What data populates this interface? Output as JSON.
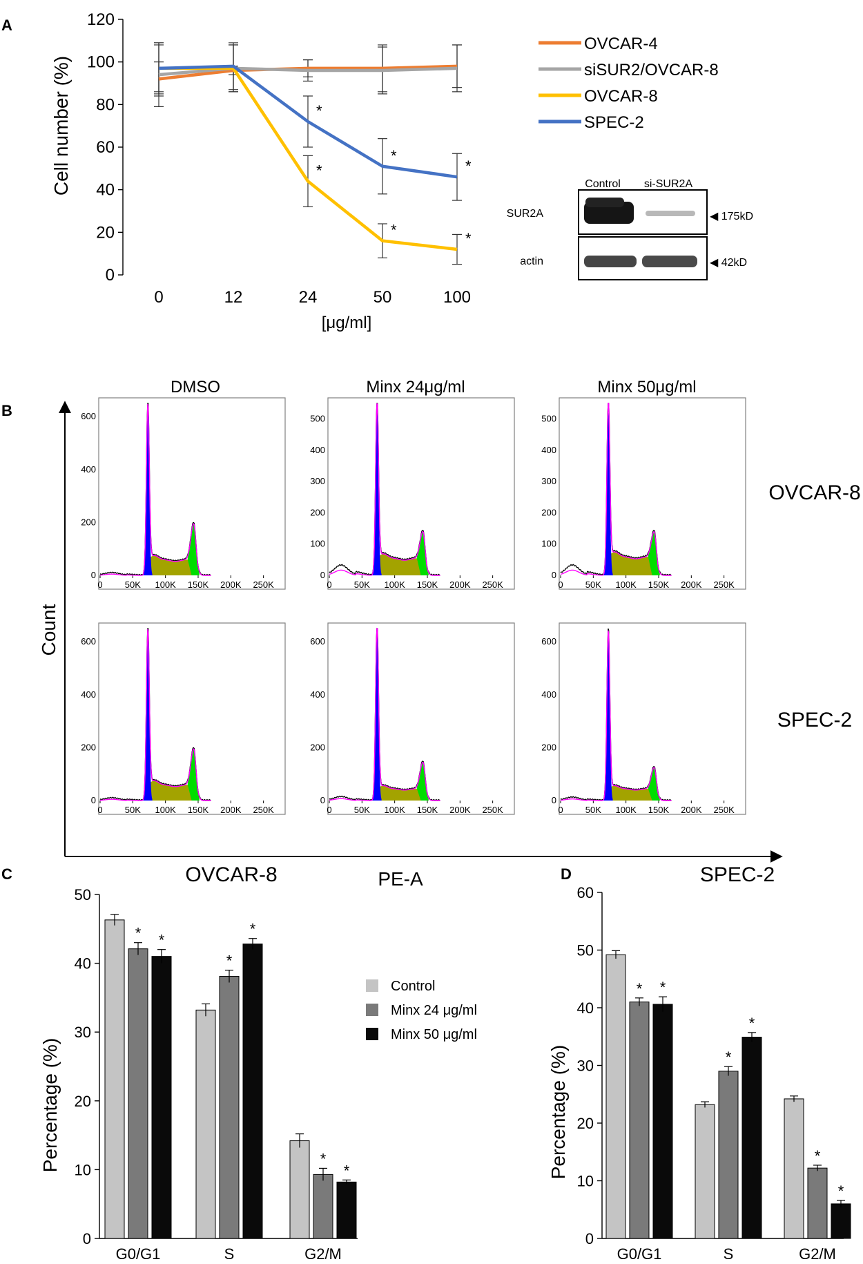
{
  "panels": {
    "A": "A",
    "B": "B",
    "C": "C",
    "D": "D"
  },
  "colors": {
    "OVCAR-4": "#ED7D31",
    "siSUR2/OVCAR-8": "#A5A5A5",
    "OVCAR-8": "#FFC000",
    "SPEC-2": "#4472C4",
    "control": "#C4C4C4",
    "minx24": "#7A7A7A",
    "minx50": "#0A0A0A",
    "g1": "#0000FF",
    "s": "#A3A300",
    "g2": "#00DD00",
    "fit": "#FF00FF"
  },
  "chart_data": [
    {
      "panel": "A",
      "type": "line",
      "title": "",
      "xlabel": "[μg/ml]",
      "ylabel": "Cell number (%)",
      "categories": [
        "0",
        "12",
        "24",
        "50",
        "100"
      ],
      "yticks": [
        "0",
        "20",
        "40",
        "60",
        "80",
        "100",
        "120"
      ],
      "ylim": [
        0,
        120
      ],
      "series": [
        {
          "name": "OVCAR-4",
          "values": [
            92,
            96,
            97,
            97,
            98
          ],
          "err": [
            8,
            2,
            4,
            11,
            10
          ]
        },
        {
          "name": "siSUR2/OVCAR-8",
          "values": [
            94,
            97,
            96,
            96,
            97
          ],
          "err": [
            15,
            11,
            5,
            11,
            11
          ]
        },
        {
          "name": "OVCAR-8",
          "values": [
            97,
            97,
            44,
            16,
            12
          ],
          "err": [
            11,
            11,
            12,
            8,
            7
          ]
        },
        {
          "name": "SPEC-2",
          "values": [
            97,
            98,
            72,
            51,
            46
          ],
          "err": [
            12,
            11,
            12,
            13,
            11
          ]
        }
      ],
      "star_series": [
        "OVCAR-8",
        "SPEC-2"
      ],
      "star_from_index": 2,
      "star": "*"
    },
    {
      "panel": "B",
      "type": "histogram",
      "columns": [
        "DMSO",
        "Minx 24μg/ml",
        "Minx 50μg/ml"
      ],
      "rows": [
        "OVCAR-8",
        "SPEC-2"
      ],
      "xlabel": "PE-A",
      "ylabel": "Count",
      "xticks": [
        "0",
        "50K",
        "100K",
        "150K",
        "200K",
        "250K"
      ],
      "xlim": [
        0,
        262
      ],
      "g1_peak_k": 73,
      "g2_peak_k": 143,
      "plots": [
        {
          "row": 0,
          "col": 0,
          "ymax": 650,
          "yticks": [
            "0",
            "200",
            "400",
            "600"
          ],
          "g1_height": 610,
          "s_level": 60,
          "g2_height": 135,
          "debris": 8
        },
        {
          "row": 0,
          "col": 1,
          "ymax": 550,
          "yticks": [
            "0",
            "100",
            "200",
            "300",
            "400",
            "500"
          ],
          "g1_height": 520,
          "s_level": 55,
          "g2_height": 85,
          "debris": 28
        },
        {
          "row": 0,
          "col": 2,
          "ymax": 550,
          "yticks": [
            "0",
            "100",
            "200",
            "300",
            "400",
            "500"
          ],
          "g1_height": 520,
          "s_level": 60,
          "g2_height": 80,
          "debris": 28
        },
        {
          "row": 1,
          "col": 0,
          "ymax": 650,
          "yticks": [
            "0",
            "200",
            "400",
            "600"
          ],
          "g1_height": 610,
          "s_level": 60,
          "g2_height": 135,
          "debris": 8
        },
        {
          "row": 1,
          "col": 1,
          "ymax": 650,
          "yticks": [
            "0",
            "200",
            "400",
            "600"
          ],
          "g1_height": 635,
          "s_level": 45,
          "g2_height": 100,
          "debris": 12
        },
        {
          "row": 1,
          "col": 2,
          "ymax": 650,
          "yticks": [
            "0",
            "200",
            "400",
            "600"
          ],
          "g1_height": 615,
          "s_level": 45,
          "g2_height": 80,
          "debris": 10
        }
      ]
    },
    {
      "panel": "C",
      "type": "bar",
      "title": "OVCAR-8",
      "ylabel": "Percentage (%)",
      "categories": [
        "G0/G1",
        "S",
        "G2/M"
      ],
      "ylim": [
        0,
        50
      ],
      "yticks": [
        "0",
        "10",
        "20",
        "30",
        "40",
        "50"
      ],
      "series": [
        {
          "name": "Control",
          "values": [
            46.3,
            33.2,
            14.2
          ],
          "err": [
            0.8,
            0.9,
            1.0
          ]
        },
        {
          "name": "Minx 24 μg/ml",
          "values": [
            42.1,
            38.1,
            9.3
          ],
          "err": [
            0.9,
            0.9,
            0.9
          ]
        },
        {
          "name": "Minx 50 μg/ml",
          "values": [
            41.0,
            42.8,
            8.2
          ],
          "err": [
            1.0,
            0.8,
            0.3
          ]
        }
      ],
      "significant": [
        [
          false,
          false,
          false
        ],
        [
          true,
          true,
          true
        ],
        [
          true,
          true,
          true
        ]
      ],
      "star": "*"
    },
    {
      "panel": "D",
      "type": "bar",
      "title": "SPEC-2",
      "ylabel": "Percentage (%)",
      "categories": [
        "G0/G1",
        "S",
        "G2/M"
      ],
      "ylim": [
        0,
        60
      ],
      "yticks": [
        "0",
        "10",
        "20",
        "30",
        "40",
        "50",
        "60"
      ],
      "series": [
        {
          "name": "Control",
          "values": [
            49.2,
            23.2,
            24.2
          ],
          "err": [
            0.7,
            0.5,
            0.5
          ]
        },
        {
          "name": "Minx 24 μg/ml",
          "values": [
            41.0,
            29.0,
            12.2
          ],
          "err": [
            0.7,
            0.8,
            0.5
          ]
        },
        {
          "name": "Minx 50 μg/ml",
          "values": [
            40.6,
            34.9,
            6.0
          ],
          "err": [
            1.3,
            0.8,
            0.6
          ]
        }
      ],
      "significant": [
        [
          false,
          false,
          false
        ],
        [
          true,
          true,
          true
        ],
        [
          true,
          true,
          true
        ]
      ],
      "star": "*"
    }
  ],
  "blot": {
    "lanes": [
      "Control",
      "si-SUR2A"
    ],
    "rows": [
      {
        "label": "SUR2A",
        "marker": "◀ 175kD"
      },
      {
        "label": "actin",
        "marker": "◀ 42kD"
      }
    ]
  }
}
